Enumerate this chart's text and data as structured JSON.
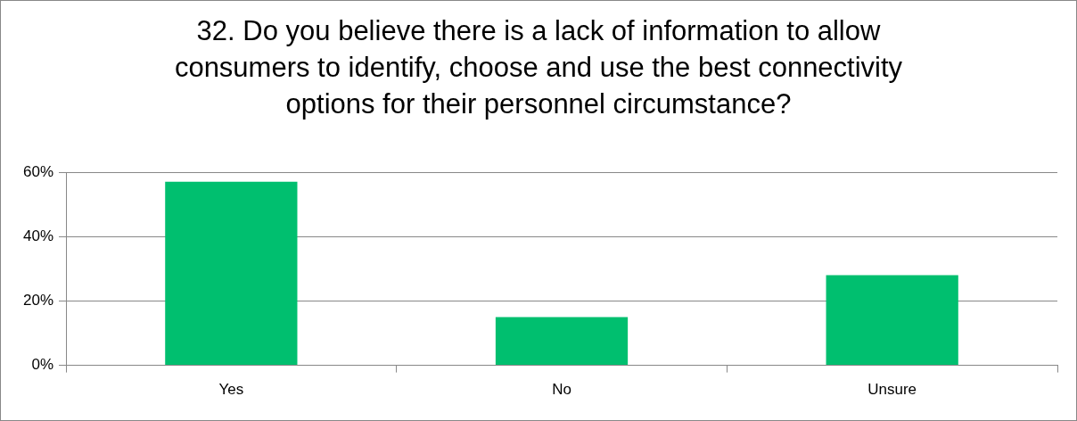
{
  "chart_data": {
    "type": "bar",
    "title": "32. Do you believe there is a lack of information to allow consumers to identify, choose and use the best connectivity options for their personnel circumstance?",
    "categories": [
      "Yes",
      "No",
      "Unsure"
    ],
    "values": [
      57,
      15,
      28
    ],
    "color": "#00bf6f",
    "ylim": [
      0,
      60
    ],
    "yticks": [
      {
        "value": 0,
        "label": "0%"
      },
      {
        "value": 20,
        "label": "20%"
      },
      {
        "value": 40,
        "label": "40%"
      },
      {
        "value": 60,
        "label": "60%"
      }
    ],
    "grid": "y",
    "legend": false
  }
}
